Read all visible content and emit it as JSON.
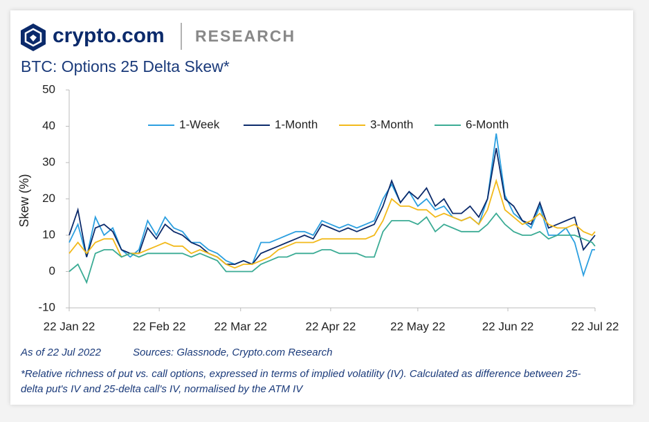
{
  "brand": "crypto.com",
  "division": "RESEARCH",
  "chart_data": {
    "type": "line",
    "title": "BTC: Options 25 Delta Skew*",
    "ylabel": "Skew (%)",
    "x": [
      "2022-01-22",
      "2022-01-25",
      "2022-01-28",
      "2022-01-31",
      "2022-02-03",
      "2022-02-06",
      "2022-02-09",
      "2022-02-12",
      "2022-02-15",
      "2022-02-18",
      "2022-02-21",
      "2022-02-24",
      "2022-02-27",
      "2022-03-02",
      "2022-03-05",
      "2022-03-08",
      "2022-03-11",
      "2022-03-14",
      "2022-03-17",
      "2022-03-20",
      "2022-03-23",
      "2022-03-26",
      "2022-03-29",
      "2022-04-01",
      "2022-04-04",
      "2022-04-07",
      "2022-04-10",
      "2022-04-13",
      "2022-04-16",
      "2022-04-19",
      "2022-04-22",
      "2022-04-25",
      "2022-04-28",
      "2022-05-01",
      "2022-05-04",
      "2022-05-07",
      "2022-05-10",
      "2022-05-13",
      "2022-05-16",
      "2022-05-19",
      "2022-05-22",
      "2022-05-25",
      "2022-05-28",
      "2022-05-31",
      "2022-06-03",
      "2022-06-06",
      "2022-06-09",
      "2022-06-12",
      "2022-06-15",
      "2022-06-18",
      "2022-06-21",
      "2022-06-24",
      "2022-06-27",
      "2022-06-30",
      "2022-07-03",
      "2022-07-06",
      "2022-07-09",
      "2022-07-12",
      "2022-07-15",
      "2022-07-18",
      "2022-07-21",
      "2022-07-22"
    ],
    "series": [
      {
        "name": "1-Week",
        "color": "#2b9fe0",
        "values": [
          8,
          13,
          4,
          15,
          10,
          12,
          6,
          4,
          6,
          14,
          10,
          15,
          12,
          11,
          8,
          8,
          6,
          5,
          3,
          2,
          3,
          2,
          8,
          8,
          9,
          10,
          11,
          11,
          10,
          14,
          13,
          12,
          13,
          12,
          13,
          14,
          20,
          24,
          19,
          22,
          18,
          20,
          17,
          18,
          15,
          14,
          15,
          13,
          20,
          38,
          21,
          16,
          14,
          12,
          18,
          10,
          10,
          12,
          8,
          -1,
          6,
          6
        ]
      },
      {
        "name": "1-Month",
        "color": "#0b2a6b",
        "values": [
          10,
          17,
          4,
          12,
          13,
          11,
          6,
          5,
          5,
          12,
          9,
          13,
          11,
          10,
          8,
          7,
          5,
          4,
          2,
          2,
          3,
          2,
          5,
          6,
          7,
          8,
          9,
          10,
          9,
          13,
          12,
          11,
          12,
          11,
          12,
          13,
          18,
          25,
          19,
          22,
          20,
          23,
          18,
          20,
          16,
          16,
          18,
          15,
          20,
          34,
          20,
          18,
          14,
          13,
          19,
          12,
          13,
          14,
          15,
          6,
          9,
          10
        ]
      },
      {
        "name": "3-Month",
        "color": "#f2b91a",
        "values": [
          5,
          8,
          5,
          8,
          9,
          9,
          4,
          5,
          5,
          6,
          7,
          8,
          7,
          7,
          5,
          6,
          5,
          4,
          2,
          1,
          2,
          2,
          3,
          4,
          6,
          7,
          8,
          8,
          8,
          9,
          9,
          9,
          9,
          9,
          9,
          10,
          14,
          20,
          18,
          18,
          17,
          17,
          15,
          16,
          15,
          14,
          15,
          13,
          17,
          25,
          17,
          15,
          13,
          14,
          16,
          13,
          12,
          12,
          13,
          11,
          10,
          11
        ]
      },
      {
        "name": "6-Month",
        "color": "#3aab94",
        "values": [
          0,
          2,
          -3,
          5,
          6,
          6,
          4,
          5,
          4,
          5,
          5,
          5,
          5,
          5,
          4,
          5,
          4,
          3,
          0,
          0,
          0,
          0,
          2,
          3,
          4,
          4,
          5,
          5,
          5,
          6,
          6,
          5,
          5,
          5,
          4,
          4,
          11,
          14,
          14,
          14,
          13,
          15,
          11,
          13,
          12,
          11,
          11,
          11,
          13,
          16,
          13,
          11,
          10,
          10,
          11,
          9,
          10,
          10,
          10,
          9,
          8,
          7
        ]
      }
    ],
    "xlim": [
      "2022-01-22",
      "2022-07-22"
    ],
    "xticks": [
      {
        "value": "2022-01-22",
        "label": "22 Jan 22"
      },
      {
        "value": "2022-02-22",
        "label": "22 Feb 22"
      },
      {
        "value": "2022-03-22",
        "label": "22 Mar 22"
      },
      {
        "value": "2022-04-22",
        "label": "22 Apr 22"
      },
      {
        "value": "2022-05-22",
        "label": "22 May 22"
      },
      {
        "value": "2022-06-22",
        "label": "22 Jun 22"
      },
      {
        "value": "2022-07-22",
        "label": "22 Jul 22"
      }
    ],
    "ylim": [
      -10,
      50
    ],
    "yticks": [
      -10,
      0,
      10,
      20,
      30,
      40,
      50
    ],
    "legend": "upper center"
  },
  "footer": {
    "date": "As of 22 Jul 2022",
    "sources": "Sources: Glassnode, Crypto.com Research",
    "note": "*Relative richness of put vs. call options, expressed in terms of implied volatility (IV). Calculated as difference between 25-delta put's IV and 25-delta call's IV, normalised by the ATM IV"
  }
}
